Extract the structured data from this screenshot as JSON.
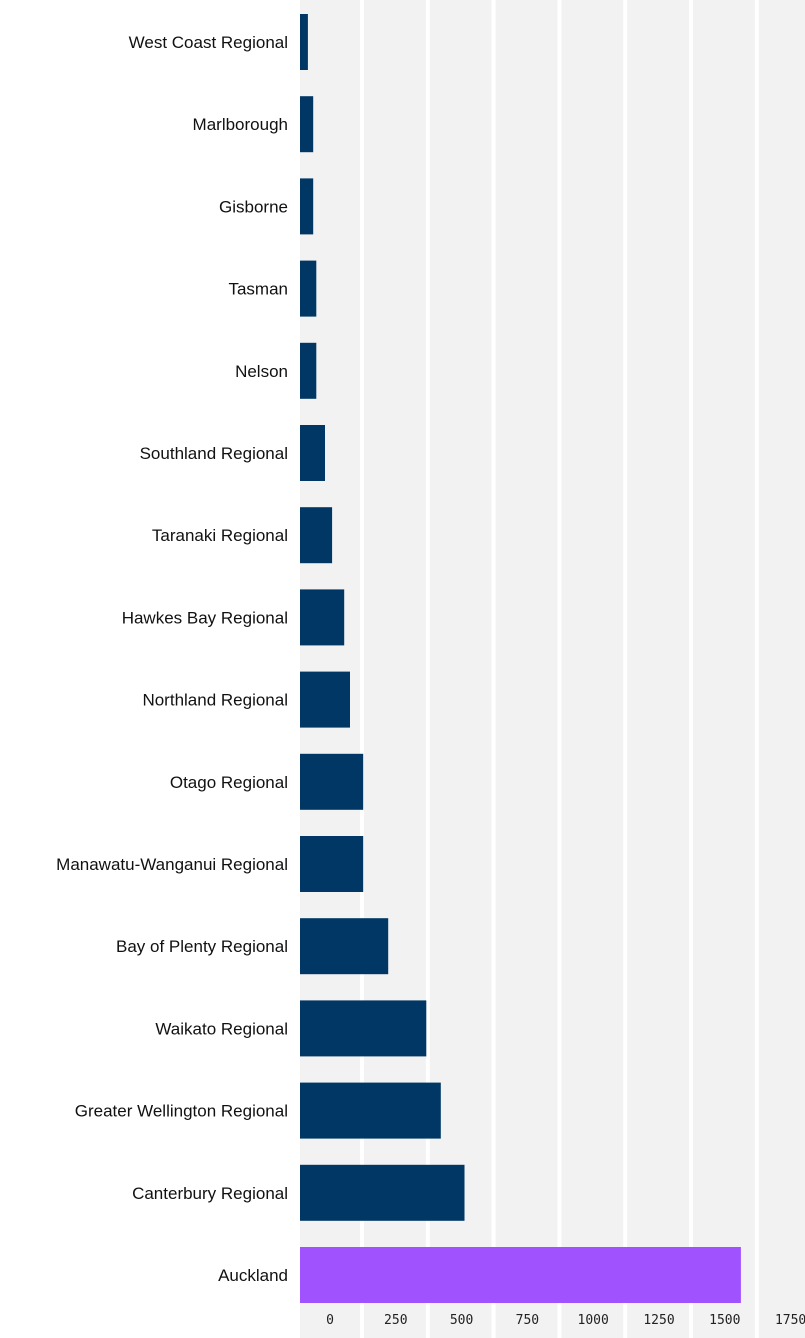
{
  "chart_data": {
    "type": "bar",
    "orientation": "horizontal",
    "categories": [
      "West Coast Regional",
      "Marlborough",
      "Gisborne",
      "Tasman",
      "Nelson",
      "Southland Regional",
      "Taranaki Regional",
      "Hawkes Bay Regional",
      "Northland Regional",
      "Otago Regional",
      "Manawatu-Wanganui Regional",
      "Bay of Plenty Regional",
      "Waikato Regional",
      "Greater Wellington Regional",
      "Canterbury Regional",
      "Auckland"
    ],
    "values": [
      30,
      50,
      50,
      62,
      62,
      95,
      122,
      168,
      190,
      240,
      240,
      335,
      480,
      535,
      625,
      1675
    ],
    "highlight_category": "Auckland",
    "colors": {
      "bar": "#003764",
      "highlight": "#a152ff",
      "plot_background": "#f2f2f2",
      "gridline": "#ffffff"
    },
    "xaxis": {
      "ticks": [
        "0",
        "250",
        "500",
        "750",
        "1000",
        "1250",
        "1500",
        "1750"
      ],
      "range": [
        0,
        1750
      ]
    },
    "grid": true,
    "title": "",
    "xlabel": "",
    "ylabel": ""
  }
}
